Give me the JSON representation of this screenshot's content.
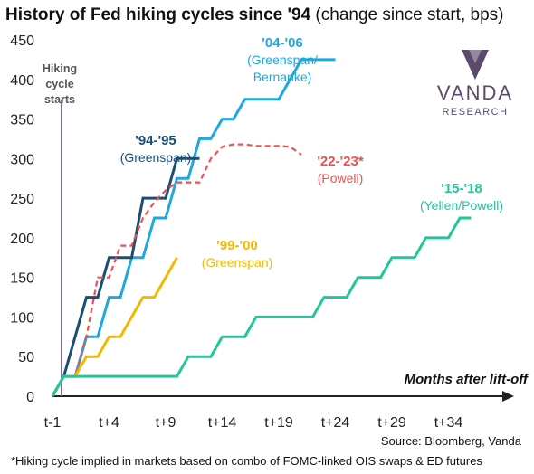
{
  "title_bold": "History of Fed hiking cycles since '94",
  "title_rest": " (change since start, bps)",
  "source": "Source: Bloomberg, Vanda",
  "footnote": "*Hiking cycle implied in markets based on combo of FOMC-linked OIS swaps & ED futures",
  "logo": {
    "name": "VANDA",
    "sub": "RESEARCH",
    "color": "#5b4a6b"
  },
  "hiking_label": [
    "Hiking",
    "cycle",
    "starts"
  ],
  "axis_title_x": "Months after lift-off",
  "chart_data": {
    "type": "line",
    "title": "History of Fed hiking cycles since '94 (change since start, bps)",
    "xlabel": "Months after lift-off",
    "ylabel": "",
    "ylim": [
      0,
      450
    ],
    "xlim": [
      -1,
      38
    ],
    "yticks": [
      0,
      50,
      100,
      150,
      200,
      250,
      300,
      350,
      400,
      450
    ],
    "xticks": [
      {
        "value": -1,
        "label": "t-1"
      },
      {
        "value": 4,
        "label": "t+4"
      },
      {
        "value": 9,
        "label": "t+9"
      },
      {
        "value": 14,
        "label": "t+14"
      },
      {
        "value": 19,
        "label": "t+19"
      },
      {
        "value": 24,
        "label": "t+24"
      },
      {
        "value": 29,
        "label": "t+29"
      },
      {
        "value": 34,
        "label": "t+34"
      }
    ],
    "series": [
      {
        "name": "'04-'06",
        "sublabel": [
          "(Greenspan/",
          "Bernanke)"
        ],
        "color": "#1fa8e0",
        "dashed": false,
        "x": [
          -1,
          0,
          1,
          2,
          3,
          4,
          5,
          6,
          7,
          8,
          9,
          10,
          11,
          12,
          13,
          14,
          15,
          16,
          17,
          18,
          19,
          20,
          21,
          22,
          23,
          24
        ],
        "y": [
          0,
          25,
          25,
          75,
          75,
          125,
          125,
          175,
          175,
          225,
          225,
          275,
          275,
          325,
          325,
          350,
          350,
          375,
          375,
          375,
          375,
          400,
          425,
          425,
          425,
          425
        ]
      },
      {
        "name": "'94-'95",
        "sublabel": [
          "(Greenspan)"
        ],
        "color": "#1b4f72",
        "dashed": false,
        "x": [
          -1,
          0,
          1,
          2,
          3,
          4,
          5,
          6,
          7,
          8,
          9,
          10,
          11,
          12
        ],
        "y": [
          0,
          25,
          75,
          125,
          125,
          175,
          175,
          175,
          250,
          250,
          250,
          300,
          300,
          300
        ]
      },
      {
        "name": "'22-'23*",
        "sublabel": [
          "(Powell)"
        ],
        "color": "#f0504f",
        "dashed": true,
        "x": [
          -1,
          0,
          1,
          2,
          3,
          4,
          5,
          6,
          7,
          8,
          9,
          10,
          11,
          12,
          13,
          14,
          15,
          16,
          17,
          18,
          19,
          20,
          21
        ],
        "y": [
          0,
          25,
          25,
          75,
          150,
          150,
          190,
          190,
          225,
          245,
          260,
          270,
          270,
          270,
          300,
          315,
          318,
          318,
          316,
          316,
          316,
          315,
          305
        ]
      },
      {
        "name": "'99-'00",
        "sublabel": [
          "(Greenspan)"
        ],
        "color": "#f5b800",
        "dashed": false,
        "x": [
          -1,
          0,
          1,
          2,
          3,
          4,
          5,
          6,
          7,
          8,
          9,
          10
        ],
        "y": [
          0,
          25,
          25,
          50,
          50,
          75,
          75,
          100,
          125,
          125,
          150,
          175
        ]
      },
      {
        "name": "'15-'18",
        "sublabel": [
          "(Yellen/Powell)"
        ],
        "color": "#1fc79a",
        "dashed": false,
        "x": [
          -1,
          0,
          1,
          2,
          3,
          4,
          5,
          6,
          7,
          8,
          9,
          10,
          11,
          12,
          13,
          14,
          15,
          16,
          17,
          18,
          19,
          20,
          21,
          22,
          23,
          24,
          25,
          26,
          27,
          28,
          29,
          30,
          31,
          32,
          33,
          34,
          35,
          36
        ],
        "y": [
          0,
          25,
          25,
          25,
          25,
          25,
          25,
          25,
          25,
          25,
          25,
          25,
          50,
          50,
          50,
          75,
          75,
          75,
          100,
          100,
          100,
          100,
          100,
          100,
          125,
          125,
          125,
          150,
          150,
          150,
          175,
          175,
          175,
          200,
          200,
          200,
          225,
          225
        ]
      }
    ]
  }
}
